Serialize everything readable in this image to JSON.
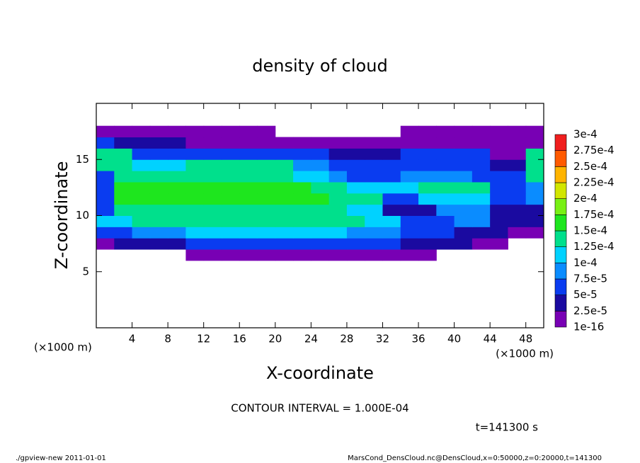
{
  "chart_data": {
    "type": "heatmap",
    "title": "density of cloud",
    "xlabel": "X-coordinate",
    "ylabel": "Z-coordinate",
    "x_unit_left": "(×1000 m)",
    "x_unit_right": "(×1000 m)",
    "annotation": "CONTOUR INTERVAL = 1.000E-04",
    "time_label": "t=141300 s",
    "footer_left": "./gpview-new  2011-01-01",
    "footer_right": "MarsCond_DensCloud.nc@DensCloud,x=0:50000,z=0:20000,t=141300",
    "xlim": [
      0,
      50
    ],
    "ylim": [
      0,
      20
    ],
    "xticks": [
      4,
      8,
      12,
      16,
      20,
      24,
      28,
      32,
      36,
      40,
      44,
      48
    ],
    "yticks": [
      5,
      10,
      15
    ],
    "x": [
      0,
      2,
      4,
      6,
      8,
      10,
      12,
      14,
      16,
      18,
      20,
      22,
      24,
      26,
      28,
      30,
      32,
      34,
      36,
      38,
      40,
      42,
      44,
      46,
      48,
      50
    ],
    "y": [
      6,
      7,
      8,
      9,
      10,
      11,
      12,
      13,
      14,
      15,
      16,
      17,
      18
    ],
    "values": [
      [
        null,
        null,
        null,
        null,
        null,
        1e-05,
        1e-05,
        1e-05,
        1e-05,
        1e-05,
        1e-05,
        1e-05,
        1e-05,
        1e-05,
        1e-05,
        1e-05,
        1e-05,
        1e-05,
        1e-05,
        null,
        null,
        null,
        null,
        null,
        null
      ],
      [
        1e-05,
        3e-05,
        3e-05,
        3e-05,
        3e-05,
        5e-05,
        5e-05,
        5e-05,
        5e-05,
        5e-05,
        5e-05,
        5e-05,
        5e-05,
        5e-05,
        5e-05,
        5e-05,
        5e-05,
        3e-05,
        3e-05,
        3e-05,
        3e-05,
        1e-05,
        1e-05,
        null,
        null
      ],
      [
        5e-05,
        5e-05,
        9e-05,
        9e-05,
        9e-05,
        0.00011,
        0.00011,
        0.00011,
        0.00011,
        0.00011,
        0.00011,
        0.00011,
        0.00011,
        0.00011,
        9e-05,
        9e-05,
        9e-05,
        5e-05,
        5e-05,
        5e-05,
        3e-05,
        3e-05,
        3e-05,
        1e-05,
        1e-05
      ],
      [
        0.00011,
        0.00011,
        0.00014,
        0.00014,
        0.00014,
        0.00014,
        0.00014,
        0.00014,
        0.00014,
        0.00014,
        0.00014,
        0.00014,
        0.00014,
        0.00014,
        0.00014,
        0.00011,
        0.00011,
        5e-05,
        5e-05,
        5e-05,
        9e-05,
        9e-05,
        3e-05,
        3e-05,
        3e-05
      ],
      [
        5e-05,
        0.00014,
        0.00014,
        0.00014,
        0.00014,
        0.00014,
        0.00014,
        0.00014,
        0.00014,
        0.00014,
        0.00014,
        0.00014,
        0.00014,
        0.00014,
        0.00011,
        0.00011,
        3e-05,
        3e-05,
        3e-05,
        9e-05,
        9e-05,
        9e-05,
        3e-05,
        3e-05,
        3e-05
      ],
      [
        5e-05,
        0.00016,
        0.00016,
        0.00016,
        0.00016,
        0.00016,
        0.00016,
        0.00016,
        0.00016,
        0.00016,
        0.00016,
        0.00016,
        0.00016,
        0.00014,
        0.00014,
        0.00014,
        5e-05,
        5e-05,
        0.00011,
        0.00011,
        0.00011,
        0.00011,
        5e-05,
        5e-05,
        9e-05
      ],
      [
        5e-05,
        0.00016,
        0.00016,
        0.00016,
        0.00016,
        0.00016,
        0.00016,
        0.00016,
        0.00016,
        0.00016,
        0.00016,
        0.00016,
        0.00014,
        0.00014,
        0.00011,
        0.00011,
        0.00011,
        0.00011,
        0.00014,
        0.00014,
        0.00014,
        0.00014,
        5e-05,
        5e-05,
        9e-05
      ],
      [
        5e-05,
        0.00014,
        0.00014,
        0.00014,
        0.00014,
        0.00014,
        0.00014,
        0.00014,
        0.00014,
        0.00014,
        0.00014,
        0.00011,
        0.00011,
        9e-05,
        5e-05,
        5e-05,
        5e-05,
        9e-05,
        9e-05,
        9e-05,
        9e-05,
        5e-05,
        5e-05,
        5e-05,
        0.00014
      ],
      [
        0.00014,
        0.00014,
        0.00011,
        0.00011,
        0.00011,
        0.00014,
        0.00014,
        0.00014,
        0.00014,
        0.00014,
        0.00014,
        9e-05,
        9e-05,
        5e-05,
        5e-05,
        7e-05,
        7e-05,
        7e-05,
        7e-05,
        5e-05,
        5e-05,
        5e-05,
        3e-05,
        3e-05,
        0.00014
      ],
      [
        0.00014,
        0.00014,
        5e-05,
        5e-05,
        5e-05,
        7e-05,
        7e-05,
        7e-05,
        7e-05,
        7e-05,
        5e-05,
        5e-05,
        5e-05,
        3e-05,
        3e-05,
        3e-05,
        3e-05,
        5e-05,
        5e-05,
        5e-05,
        5e-05,
        5e-05,
        1e-05,
        1e-05,
        0.00014
      ],
      [
        5e-05,
        3e-05,
        3e-05,
        3e-05,
        3e-05,
        1e-05,
        1e-05,
        1e-05,
        1e-05,
        1e-05,
        1e-05,
        1e-05,
        1e-05,
        1e-05,
        1e-05,
        1e-05,
        1e-05,
        1e-05,
        1e-05,
        1e-05,
        1e-05,
        1e-05,
        1e-05,
        1e-05,
        1e-05
      ],
      [
        1e-05,
        1e-05,
        1e-05,
        1e-05,
        1e-05,
        1e-05,
        1e-05,
        1e-05,
        1e-05,
        1e-05,
        null,
        null,
        null,
        null,
        null,
        null,
        null,
        1e-05,
        1e-05,
        1e-05,
        1e-05,
        1e-05,
        1e-05,
        1e-05,
        1e-05
      ]
    ],
    "levels": [
      1e-16,
      {
        "value": 2.5e-05,
        "label": "2.5e-5"
      },
      {
        "value": 5e-05,
        "label": "5e-5"
      },
      {
        "value": 7.5e-05,
        "label": "7.5e-5"
      },
      {
        "value": 0.0001,
        "label": "1e-4"
      },
      {
        "value": 0.000125,
        "label": "1.25e-4"
      },
      {
        "value": 0.00015,
        "label": "1.5e-4"
      },
      {
        "value": 0.000175,
        "label": "1.75e-4"
      },
      {
        "value": 0.0002,
        "label": "2e-4"
      },
      {
        "value": 0.000225,
        "label": "2.25e-4"
      },
      {
        "value": 0.00025,
        "label": "2.5e-4"
      },
      {
        "value": 0.000275,
        "label": "2.75e-4"
      },
      {
        "value": 0.0003,
        "label": "3e-4"
      }
    ],
    "colors": [
      "#7800b4",
      "#1a0aa0",
      "#0a3cf0",
      "#0a8cff",
      "#00d2ff",
      "#00e08c",
      "#1ee61e",
      "#78f014",
      "#d2e600",
      "#ffb400",
      "#ff5a00",
      "#f01e1e",
      "#ff9090"
    ]
  }
}
